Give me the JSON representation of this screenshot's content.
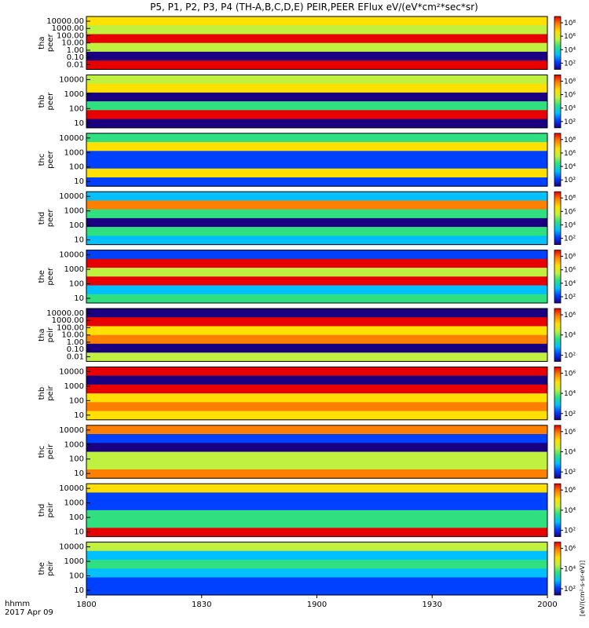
{
  "chart_data": {
    "type": "heatmap",
    "title": "P5, P1, P2, P3, P4 (TH-A,B,C,D,E) PEIR,PEER EFlux eV/(eV*cm²*sec*sr)",
    "colorbar_label": "[eV/(cm²-s-sr-eV)]",
    "xlabel_left": "hhmm",
    "date_label": "2017 Apr 09",
    "x_range": [
      "18:00",
      "20:00"
    ],
    "x_ticks": [
      "1800",
      "1830",
      "1900",
      "1930",
      "2000"
    ],
    "panels": [
      {
        "id": "tha_peer",
        "line1": "tha",
        "line2": "peer",
        "y_scale": "log",
        "y_range": [
          0.01,
          10000
        ],
        "y_ticks": [
          "10000.00",
          "1000.00",
          "100.00",
          "10.00",
          "1.00",
          "0.10",
          "0.01"
        ],
        "colorbar_ticks": [
          "10⁸",
          "10⁶",
          "10⁴",
          "10²"
        ]
      },
      {
        "id": "thb_peer",
        "line1": "thb",
        "line2": "peer",
        "y_scale": "log",
        "y_range": [
          10,
          10000
        ],
        "y_ticks": [
          "10000",
          "1000",
          "100",
          "10"
        ],
        "colorbar_ticks": [
          "10⁸",
          "10⁶",
          "10⁴",
          "10²"
        ]
      },
      {
        "id": "thc_peer",
        "line1": "thc",
        "line2": "peer",
        "y_scale": "log",
        "y_range": [
          10,
          10000
        ],
        "y_ticks": [
          "10000",
          "1000",
          "100",
          "10"
        ],
        "colorbar_ticks": [
          "10⁸",
          "10⁶",
          "10⁴",
          "10²"
        ]
      },
      {
        "id": "thd_peer",
        "line1": "thd",
        "line2": "peer",
        "y_scale": "log",
        "y_range": [
          10,
          10000
        ],
        "y_ticks": [
          "10000",
          "1000",
          "100",
          "10"
        ],
        "colorbar_ticks": [
          "10⁸",
          "10⁶",
          "10⁴",
          "10²"
        ]
      },
      {
        "id": "the_peer",
        "line1": "the",
        "line2": "peer",
        "y_scale": "log",
        "y_range": [
          10,
          10000
        ],
        "y_ticks": [
          "10000",
          "1000",
          "100",
          "10"
        ],
        "colorbar_ticks": [
          "10⁸",
          "10⁶",
          "10⁴",
          "10²"
        ]
      },
      {
        "id": "tha_peir",
        "line1": "tha",
        "line2": "peir",
        "y_scale": "log",
        "y_range": [
          0.01,
          10000
        ],
        "y_ticks": [
          "10000.00",
          "1000.00",
          "100.00",
          "10.00",
          "1.00",
          "0.10",
          "0.01"
        ],
        "colorbar_ticks": [
          "10⁶",
          "10⁴",
          "10²"
        ]
      },
      {
        "id": "thb_peir",
        "line1": "thb",
        "line2": "peir",
        "y_scale": "log",
        "y_range": [
          10,
          10000
        ],
        "y_ticks": [
          "10000",
          "1000",
          "100",
          "10"
        ],
        "colorbar_ticks": [
          "10⁶",
          "10⁴",
          "10²"
        ]
      },
      {
        "id": "thc_peir",
        "line1": "thc",
        "line2": "peir",
        "y_scale": "log",
        "y_range": [
          10,
          10000
        ],
        "y_ticks": [
          "10000",
          "1000",
          "100",
          "10"
        ],
        "colorbar_ticks": [
          "10⁶",
          "10⁴",
          "10²"
        ]
      },
      {
        "id": "thd_peir",
        "line1": "thd",
        "line2": "peir",
        "y_scale": "log",
        "y_range": [
          10,
          10000
        ],
        "y_ticks": [
          "10000",
          "1000",
          "100",
          "10"
        ],
        "colorbar_ticks": [
          "10⁶",
          "10⁴",
          "10²"
        ]
      },
      {
        "id": "the_peir",
        "line1": "the",
        "line2": "peir",
        "y_scale": "log",
        "y_range": [
          10,
          10000
        ],
        "y_ticks": [
          "10000",
          "1000",
          "100",
          "10"
        ],
        "colorbar_ticks": [
          "10⁶",
          "10⁴",
          "10²"
        ]
      }
    ],
    "colormap": [
      "#1a0080",
      "#0040ff",
      "#00c0ff",
      "#30e080",
      "#c0f040",
      "#ffe000",
      "#ff8000",
      "#e80000"
    ]
  }
}
